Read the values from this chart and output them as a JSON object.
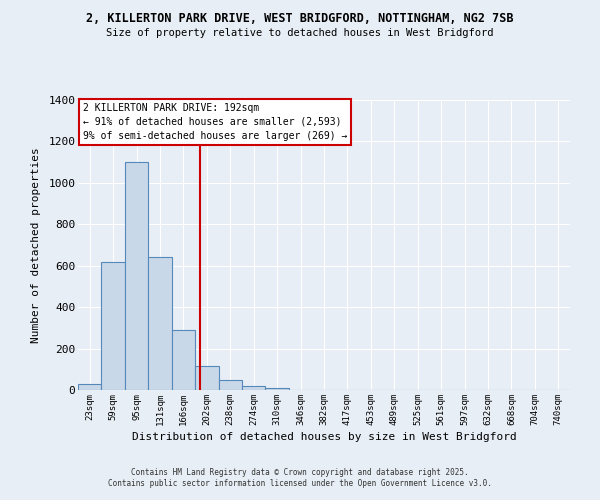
{
  "title_line1": "2, KILLERTON PARK DRIVE, WEST BRIDGFORD, NOTTINGHAM, NG2 7SB",
  "title_line2": "Size of property relative to detached houses in West Bridgford",
  "xlabel": "Distribution of detached houses by size in West Bridgford",
  "ylabel": "Number of detached properties",
  "bar_labels": [
    "23sqm",
    "59sqm",
    "95sqm",
    "131sqm",
    "166sqm",
    "202sqm",
    "238sqm",
    "274sqm",
    "310sqm",
    "346sqm",
    "382sqm",
    "417sqm",
    "453sqm",
    "489sqm",
    "525sqm",
    "561sqm",
    "597sqm",
    "632sqm",
    "668sqm",
    "704sqm",
    "740sqm"
  ],
  "bar_values": [
    30,
    620,
    1100,
    640,
    290,
    115,
    50,
    20,
    10,
    0,
    0,
    0,
    0,
    0,
    0,
    0,
    0,
    0,
    0,
    0,
    0
  ],
  "bar_color": "#c8d8e8",
  "bar_edge_color": "#5588bb",
  "vline_color": "#cc0000",
  "ylim": [
    0,
    1400
  ],
  "yticks": [
    0,
    200,
    400,
    600,
    800,
    1000,
    1200,
    1400
  ],
  "annotation_title": "2 KILLERTON PARK DRIVE: 192sqm",
  "annotation_line2": "← 91% of detached houses are smaller (2,593)",
  "annotation_line3": "9% of semi-detached houses are larger (269) →",
  "annotation_box_color": "#ffffff",
  "annotation_box_edge": "#cc0000",
  "background_color": "#e8eef5",
  "grid_color": "#ffffff",
  "footer_line1": "Contains HM Land Registry data © Crown copyright and database right 2025.",
  "footer_line2": "Contains public sector information licensed under the Open Government Licence v3.0."
}
